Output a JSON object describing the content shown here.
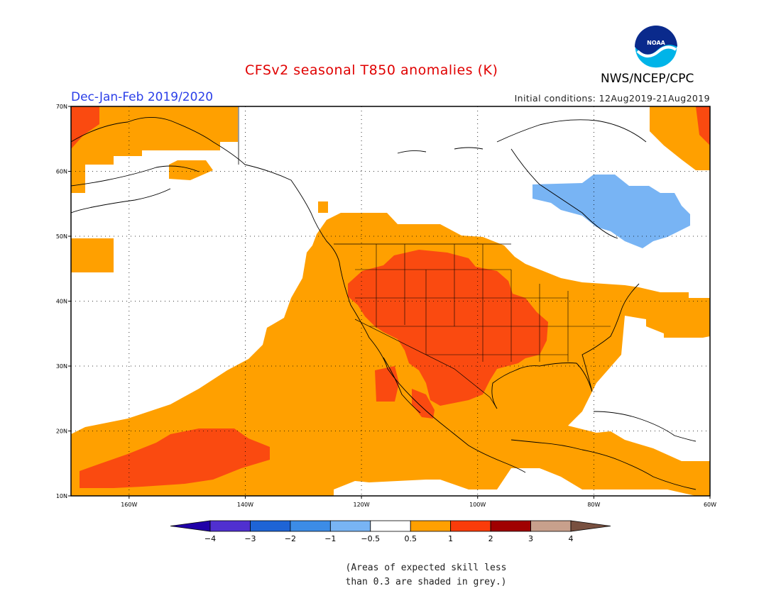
{
  "header": {
    "title": "CFSv2 seasonal T850 anomalies (K)",
    "agency": "NWS/NCEP/CPC",
    "logo_text": "NOAA",
    "season": "Dec-Jan-Feb 2019/2020",
    "initial_conditions": "Initial conditions: 12Aug2019-21Aug2019"
  },
  "map": {
    "lon_range": [
      -170,
      -60
    ],
    "lat_range": [
      10,
      70
    ],
    "lon_labels": [
      "160W",
      "140W",
      "120W",
      "100W",
      "80W",
      "60W"
    ],
    "lat_labels": [
      "10N",
      "20N",
      "30N",
      "40N",
      "50N",
      "60N",
      "70N"
    ],
    "grid": "dotted"
  },
  "legend": {
    "tick_labels": [
      "-4",
      "-3",
      "-2",
      "-1",
      "-0.5",
      "0.5",
      "1",
      "2",
      "3",
      "4"
    ],
    "colors": [
      "#2000a8",
      "#5030d0",
      "#1e64d6",
      "#3c8ce6",
      "#78b4f4",
      "#ffffff",
      "#ffa000",
      "#fa3c0a",
      "#a00000",
      "#c8a08c",
      "#785040"
    ]
  },
  "palette": {
    "warm_weak": "#ffa000",
    "warm_strong": "#fa4a10",
    "cool_weak": "#78b4f4"
  },
  "note": {
    "line1": "(Areas of expected skill less",
    "line2": "than 0.3 are shaded in grey.)"
  }
}
